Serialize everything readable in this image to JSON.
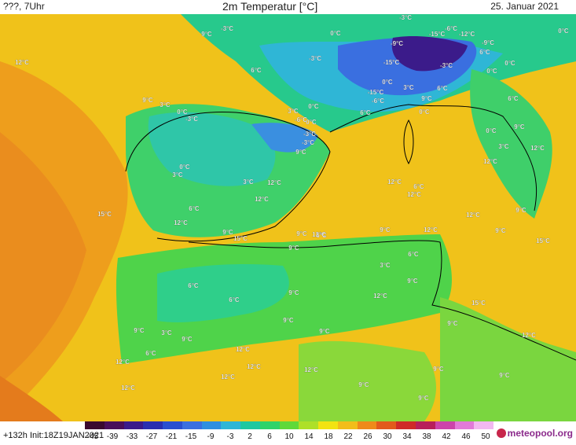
{
  "header": {
    "left": "???, 7Uhr",
    "title": "2m Temperatur [°C]",
    "date": "25. Januar 2021"
  },
  "footer": {
    "run_info": "+132h  Init:18Z19JAN2021",
    "brand": "meteopool.org"
  },
  "colorbar": {
    "ticks": [
      "-45",
      "-39",
      "-33",
      "-27",
      "-21",
      "-15",
      "-9",
      "-3",
      "2",
      "6",
      "10",
      "14",
      "18",
      "22",
      "26",
      "30",
      "34",
      "38",
      "42",
      "46",
      "50"
    ],
    "colors": [
      "#3b0a2f",
      "#4a0f5a",
      "#3b1b8a",
      "#2a2fb0",
      "#2a4fd0",
      "#3a6fe0",
      "#2f8fe0",
      "#2fb6d6",
      "#1fc8a0",
      "#2fd36a",
      "#5fd93a",
      "#aee028",
      "#f2e312",
      "#f2bd1a",
      "#ef8a1a",
      "#e25a1c",
      "#cf2a28",
      "#b81f5a",
      "#cc44aa",
      "#e27ad8",
      "#f2b8f0"
    ]
  },
  "map_labels": [
    {
      "text": "9°C"
    },
    {
      "text": "-3°C"
    },
    {
      "text": "0°C"
    },
    {
      "text": "-3°C"
    },
    {
      "text": "-6°C"
    },
    {
      "text": "-15°C"
    },
    {
      "text": "-12°C"
    },
    {
      "text": "0°C"
    },
    {
      "text": "12°C"
    },
    {
      "text": "6°C"
    },
    {
      "text": "-3°C"
    },
    {
      "text": "-9°C"
    },
    {
      "text": "-9°C"
    },
    {
      "text": "6°C"
    },
    {
      "text": "-15°C"
    },
    {
      "text": "-3°C"
    },
    {
      "text": "0°C"
    },
    {
      "text": "0°C"
    },
    {
      "text": "9°C"
    },
    {
      "text": "3°C"
    },
    {
      "text": "0°C"
    },
    {
      "text": "-15°C"
    },
    {
      "text": "0°C"
    },
    {
      "text": "-6°C"
    },
    {
      "text": "3°C"
    },
    {
      "text": "9°C"
    },
    {
      "text": "6°C"
    },
    {
      "text": "-3°C"
    },
    {
      "text": "3°C"
    },
    {
      "text": "0°C"
    },
    {
      "text": "6°C"
    },
    {
      "text": "6°C"
    },
    {
      "text": "0°C"
    },
    {
      "text": "-6°C"
    },
    {
      "text": "-3°C"
    },
    {
      "text": "0°C"
    },
    {
      "text": "9°C"
    },
    {
      "text": "0°C"
    },
    {
      "text": "-3°C"
    },
    {
      "text": "9°C"
    },
    {
      "text": "3°C"
    },
    {
      "text": "12°C"
    },
    {
      "text": "0°C"
    },
    {
      "text": "3°C"
    },
    {
      "text": "12°C"
    },
    {
      "text": "3°C"
    },
    {
      "text": "12°C"
    },
    {
      "text": "12°C"
    },
    {
      "text": "6°C"
    },
    {
      "text": "6°C"
    },
    {
      "text": "12°C"
    },
    {
      "text": "15°C"
    },
    {
      "text": "12°C"
    },
    {
      "text": "9°C"
    },
    {
      "text": "12°C"
    },
    {
      "text": "9°C"
    },
    {
      "text": "15°C"
    },
    {
      "text": "9°C"
    },
    {
      "text": "12°C"
    },
    {
      "text": "6°C"
    },
    {
      "text": "9°C"
    },
    {
      "text": "12°C"
    },
    {
      "text": "12°C"
    },
    {
      "text": "15°C"
    },
    {
      "text": "9°C"
    },
    {
      "text": "9°C"
    },
    {
      "text": "3°C"
    },
    {
      "text": "6°C"
    },
    {
      "text": "6°C"
    },
    {
      "text": "6°C"
    },
    {
      "text": "12°C"
    },
    {
      "text": "9°C"
    },
    {
      "text": "9°C"
    },
    {
      "text": "15°C"
    },
    {
      "text": "9°C"
    },
    {
      "text": "9°C"
    },
    {
      "text": "9°C"
    },
    {
      "text": "3°C"
    },
    {
      "text": "9°C"
    },
    {
      "text": "12°C"
    },
    {
      "text": "6°C"
    },
    {
      "text": "12°C"
    },
    {
      "text": "12°C"
    },
    {
      "text": "12°C"
    },
    {
      "text": "12°C"
    },
    {
      "text": "9°C"
    },
    {
      "text": "9°C"
    },
    {
      "text": "12°C"
    },
    {
      "text": "9°C"
    },
    {
      "text": "12°C"
    },
    {
      "text": "9°C"
    },
    {
      "text": "9°C"
    }
  ]
}
